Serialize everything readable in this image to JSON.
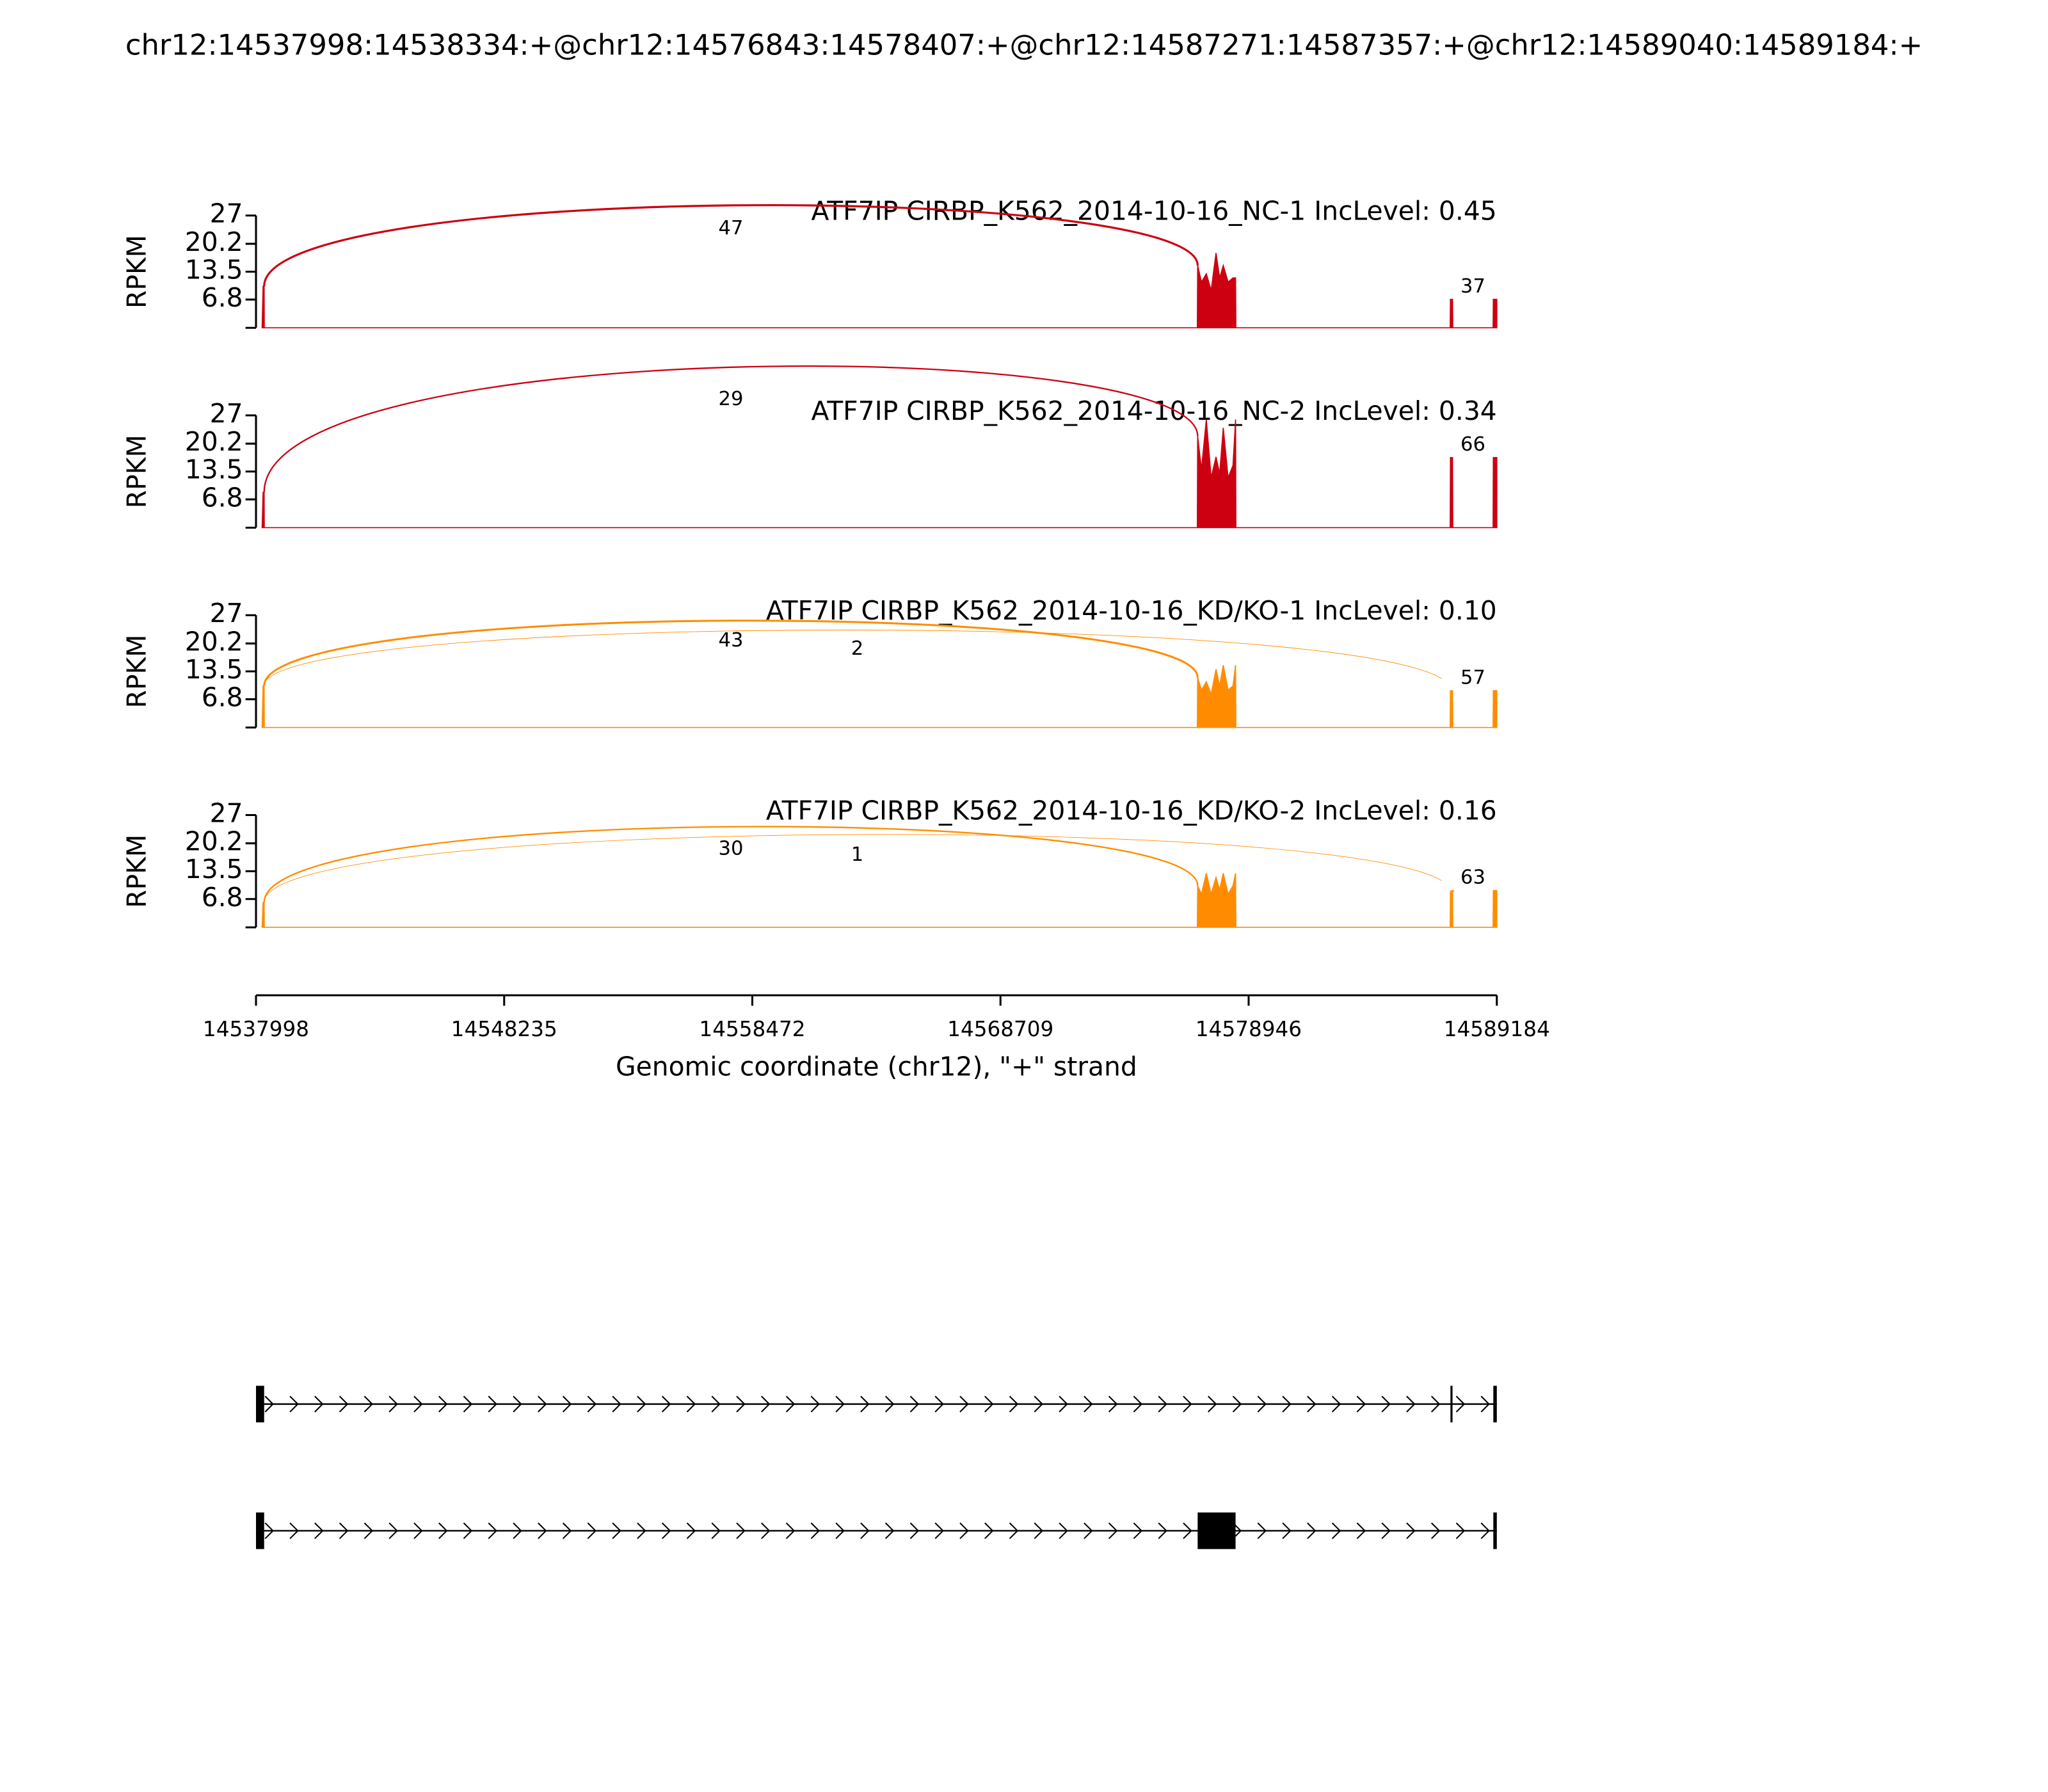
{
  "title": "chr12:14537998:14538334:+@chr12:14576843:14578407:+@chr12:14587271:14587357:+@chr12:14589040:14589184:+",
  "x_axis": {
    "xlim": [
      14537998,
      14589184
    ],
    "xticks": [
      14537998,
      14548235,
      14558472,
      14568709,
      14578946,
      14589184
    ],
    "xlabel": "Genomic coordinate (chr12), \"+\" strand"
  },
  "chart_data": [
    {
      "type": "area",
      "title": "ATF7IP CIRBP_K562_2014-10-16_NC-1 IncLevel: 0.45",
      "color": "#cc0011",
      "ylabel": "RPKM",
      "ylim": [
        0,
        27
      ],
      "yticks": [
        6.8,
        13.5,
        20.2,
        27
      ],
      "x": [
        14538250,
        14538290,
        14538334,
        14538340,
        14576830,
        14576843,
        14577000,
        14577200,
        14577400,
        14577600,
        14577750,
        14577900,
        14578100,
        14578300,
        14578407,
        14578420,
        14587260,
        14587271,
        14587357,
        14587370,
        14589030,
        14589040,
        14589184
      ],
      "values": [
        0,
        10,
        10,
        0,
        0,
        15,
        11,
        13,
        9,
        18,
        12,
        15,
        11,
        12,
        12,
        0,
        0,
        7,
        7,
        0,
        0,
        7,
        7
      ],
      "junctions": [
        {
          "start": 14538334,
          "end": 14576843,
          "value": 47
        },
        {
          "start": 14587357,
          "end": 14589040,
          "value": 37
        }
      ]
    },
    {
      "type": "area",
      "title": "ATF7IP CIRBP_K562_2014-10-16_NC-2 IncLevel: 0.34",
      "color": "#cc0011",
      "ylabel": "RPKM",
      "ylim": [
        0,
        27
      ],
      "yticks": [
        6.8,
        13.5,
        20.2,
        27
      ],
      "x": [
        14538250,
        14538290,
        14538334,
        14538340,
        14576830,
        14576843,
        14577000,
        14577200,
        14577400,
        14577600,
        14577750,
        14577900,
        14578100,
        14578300,
        14578407,
        14578420,
        14587260,
        14587271,
        14587357,
        14587370,
        14589030,
        14589040,
        14589184
      ],
      "values": [
        0,
        8.5,
        8.5,
        0,
        0,
        22,
        14,
        26,
        12,
        17,
        13,
        24,
        12,
        15,
        26,
        0,
        0,
        17,
        17,
        0,
        0,
        17,
        17
      ],
      "junctions": [
        {
          "start": 14538334,
          "end": 14576843,
          "value": 29
        },
        {
          "start": 14587357,
          "end": 14589040,
          "value": 66
        }
      ]
    },
    {
      "type": "area",
      "title": "ATF7IP CIRBP_K562_2014-10-16_KD/KO-1 IncLevel: 0.10",
      "color": "#ff8c00",
      "ylabel": "RPKM",
      "ylim": [
        0,
        27
      ],
      "yticks": [
        6.8,
        13.5,
        20.2,
        27
      ],
      "x": [
        14538250,
        14538290,
        14538334,
        14538340,
        14576830,
        14576843,
        14577000,
        14577200,
        14577400,
        14577600,
        14577750,
        14577900,
        14578100,
        14578300,
        14578407,
        14578420,
        14587260,
        14587271,
        14587357,
        14587370,
        14589030,
        14589040,
        14589184
      ],
      "values": [
        0,
        10,
        10,
        0,
        0,
        12,
        9,
        11,
        8,
        14,
        10,
        15,
        9,
        10,
        15,
        0,
        0,
        9,
        9,
        0,
        0,
        9,
        9
      ],
      "junctions": [
        {
          "start": 14538334,
          "end": 14576843,
          "value": 43
        },
        {
          "start": 14538334,
          "end": 14587271,
          "value": 2
        },
        {
          "start": 14587357,
          "end": 14589040,
          "value": 57
        }
      ]
    },
    {
      "type": "area",
      "title": "ATF7IP CIRBP_K562_2014-10-16_KD/KO-2 IncLevel: 0.16",
      "color": "#ff8c00",
      "ylabel": "RPKM",
      "ylim": [
        0,
        27
      ],
      "yticks": [
        6.8,
        13.5,
        20.2,
        27
      ],
      "x": [
        14538250,
        14538290,
        14538334,
        14538340,
        14576830,
        14576843,
        14577000,
        14577200,
        14577400,
        14577600,
        14577750,
        14577900,
        14578100,
        14578300,
        14578407,
        14578420,
        14587260,
        14587271,
        14587357,
        14587370,
        14589030,
        14589040,
        14589184
      ],
      "values": [
        0,
        6,
        6,
        0,
        0,
        10,
        8,
        13,
        8,
        12,
        9,
        13,
        8,
        10,
        13,
        0,
        0,
        8.5,
        8.5,
        0,
        0,
        9,
        9
      ],
      "junctions": [
        {
          "start": 14538334,
          "end": 14576843,
          "value": 30
        },
        {
          "start": 14538334,
          "end": 14587271,
          "value": 1
        },
        {
          "start": 14587357,
          "end": 14589040,
          "value": 63
        }
      ]
    }
  ],
  "gene_model": [
    {
      "exons": [
        [
          14537998,
          14538334
        ],
        [
          14587271,
          14587357
        ],
        [
          14589040,
          14589184
        ]
      ]
    },
    {
      "exons": [
        [
          14537998,
          14538334
        ],
        [
          14576843,
          14578407
        ],
        [
          14589040,
          14589184
        ]
      ]
    }
  ]
}
